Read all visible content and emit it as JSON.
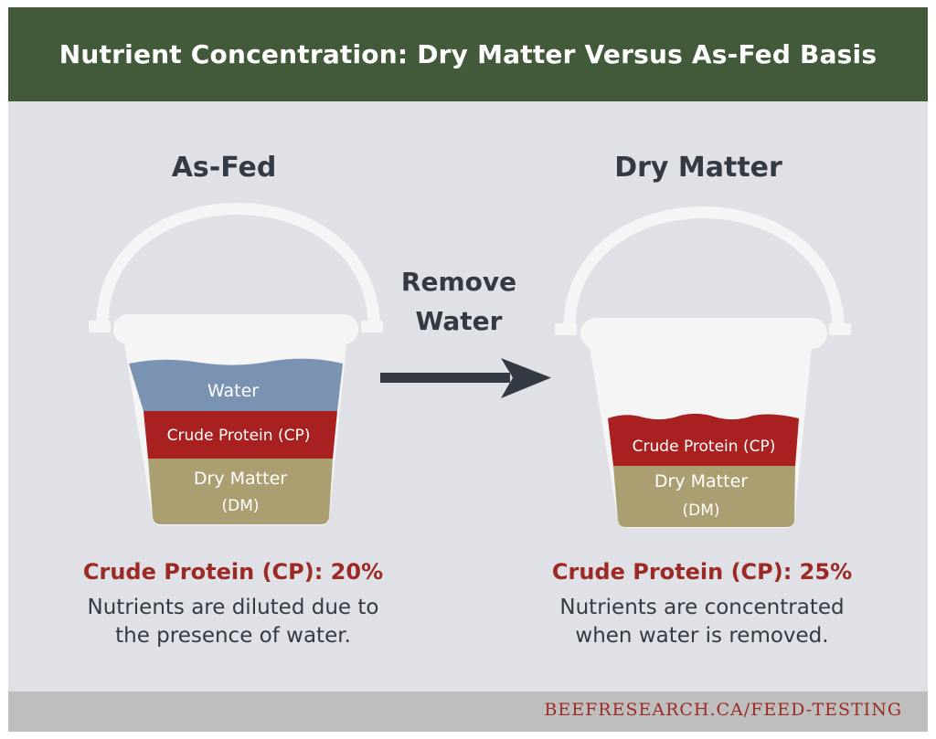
{
  "header": {
    "title": "Nutrient Concentration: Dry Matter Versus As-Fed Basis"
  },
  "left_panel": {
    "heading": "As-Fed",
    "layers": {
      "water": "Water",
      "protein": "Crude Protein (CP)",
      "dm_line1": "Dry Matter",
      "dm_line2": "(DM)"
    },
    "result_label": "Crude Protein (CP): 20%",
    "caption_line1": "Nutrients are diluted due to",
    "caption_line2": "the presence of water."
  },
  "arrow": {
    "line1": "Remove",
    "line2": "Water"
  },
  "right_panel": {
    "heading": "Dry Matter",
    "layers": {
      "protein": "Crude Protein (CP)",
      "dm_line1": "Dry Matter",
      "dm_line2": "(DM)"
    },
    "result_label": "Crude Protein (CP): 25%",
    "caption_line1": "Nutrients are concentrated",
    "caption_line2": "when water is removed."
  },
  "footer": {
    "url": "BEEFRESEARCH.CA/FEED-TESTING"
  },
  "colors": {
    "header_bg": "#425a3a",
    "panel_bg": "#dfe1e7",
    "water": "#7b93b3",
    "crude_protein": "#a8201f",
    "dry_matter": "#ab9f71",
    "bucket": "#f5f5f5",
    "text_dark": "#333a44",
    "accent_red": "#9c2a24"
  }
}
